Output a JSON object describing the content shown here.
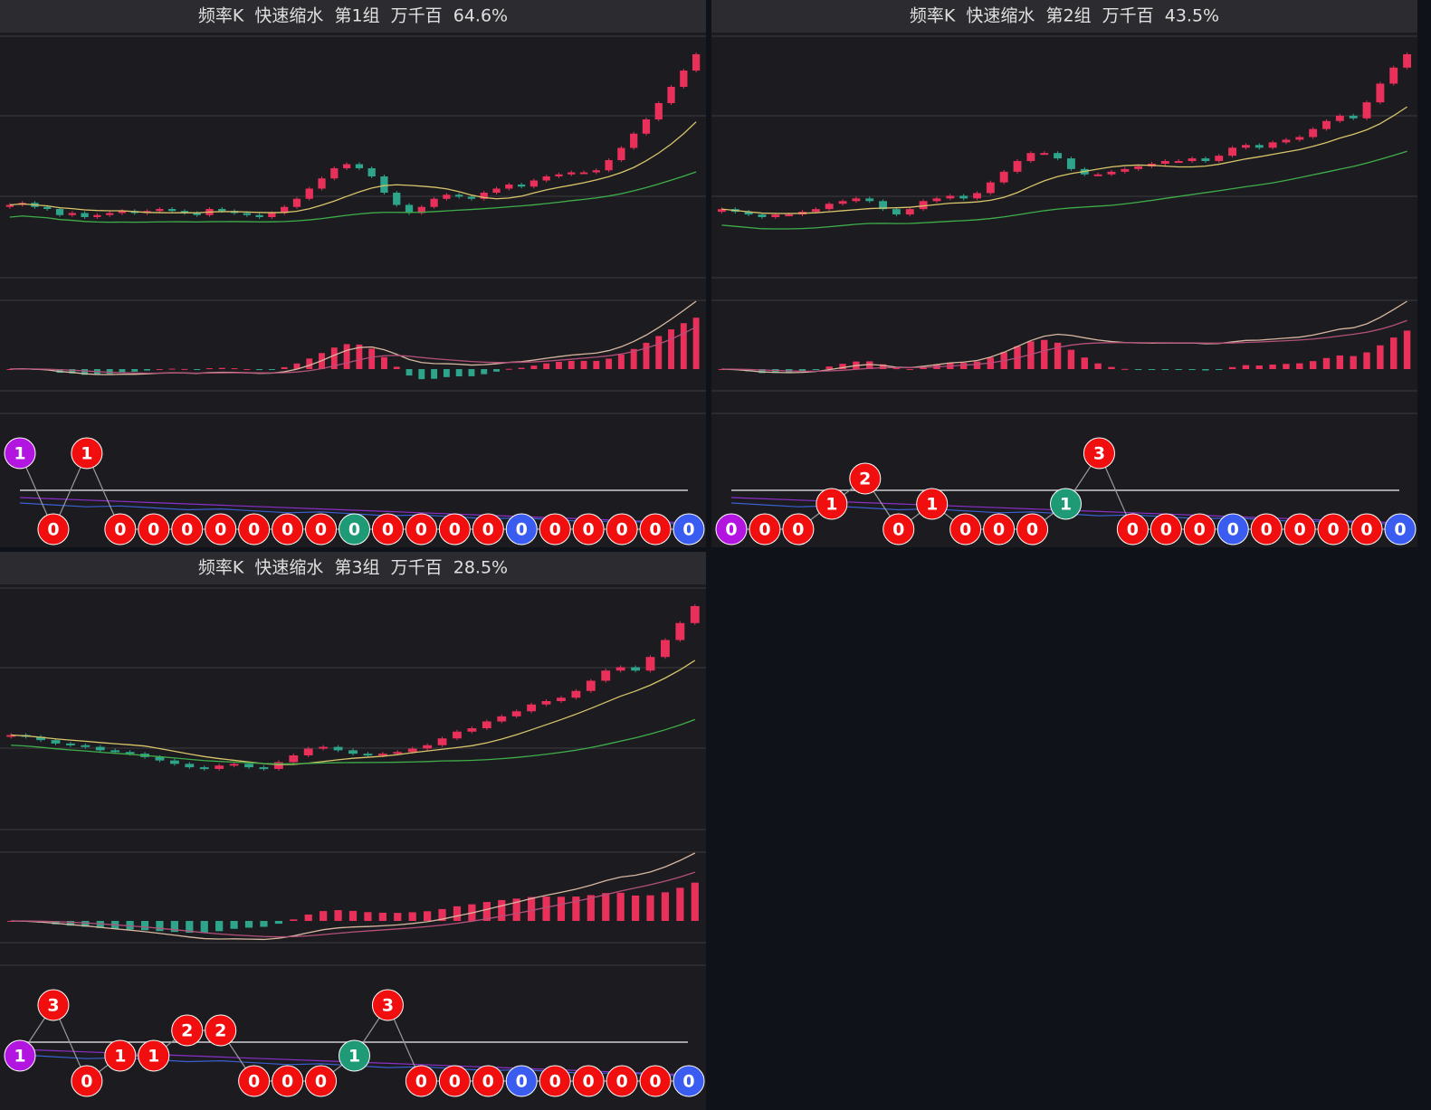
{
  "panels": [
    {
      "title": "频率K  快速缩水  第1组  万千百  64.6%",
      "close": [
        100,
        101,
        99,
        98,
        95,
        96,
        94,
        95,
        96,
        97,
        96,
        97,
        98,
        97,
        96,
        95,
        98,
        97,
        96,
        95,
        94,
        96,
        99,
        103,
        108,
        113,
        118,
        120,
        118,
        114,
        106,
        100,
        96,
        99,
        103,
        105,
        104,
        103,
        106,
        108,
        110,
        109,
        112,
        114,
        115,
        116,
        116,
        117,
        122,
        128,
        135,
        142,
        150,
        158,
        166,
        174
      ],
      "bubbles": {
        "values": [
          1,
          0,
          1,
          0,
          0,
          0,
          0,
          0,
          0,
          0,
          0,
          0,
          0,
          0,
          0,
          0,
          0,
          0,
          0,
          0,
          0
        ],
        "colors": [
          "#b315e0",
          "#f10e0e",
          "#f10e0e",
          "#f10e0e",
          "#f10e0e",
          "#f10e0e",
          "#f10e0e",
          "#f10e0e",
          "#f10e0e",
          "#f10e0e",
          "#1f9a76",
          "#f10e0e",
          "#f10e0e",
          "#f10e0e",
          "#f10e0e",
          "#3b5cf0",
          "#f10e0e",
          "#f10e0e",
          "#f10e0e",
          "#f10e0e",
          "#3b5cf0"
        ]
      }
    },
    {
      "title": "频率K  快速缩水  第2组  万千百  43.5%",
      "close": [
        100,
        99,
        98,
        97,
        98,
        98,
        99,
        100,
        102,
        103,
        104,
        103,
        100,
        98,
        100,
        103,
        104,
        105,
        104,
        106,
        110,
        114,
        118,
        121,
        121,
        119,
        115,
        113,
        113,
        114,
        115,
        116,
        117,
        118,
        118,
        119,
        118,
        120,
        123,
        124,
        123,
        125,
        126,
        127,
        130,
        133,
        135,
        134,
        140,
        147,
        153,
        158
      ],
      "bubbles": {
        "values": [
          0,
          0,
          0,
          1,
          2,
          0,
          1,
          0,
          0,
          0,
          1,
          3,
          0,
          0,
          0,
          0,
          0,
          0,
          0,
          0,
          0
        ],
        "colors": [
          "#b315e0",
          "#f10e0e",
          "#f10e0e",
          "#f10e0e",
          "#f10e0e",
          "#f10e0e",
          "#f10e0e",
          "#f10e0e",
          "#f10e0e",
          "#f10e0e",
          "#1f9a76",
          "#f10e0e",
          "#f10e0e",
          "#f10e0e",
          "#f10e0e",
          "#3b5cf0",
          "#f10e0e",
          "#f10e0e",
          "#f10e0e",
          "#f10e0e",
          "#3b5cf0"
        ]
      }
    },
    {
      "title": "频率K  快速缩水  第3组  万千百  28.5%",
      "close": [
        120,
        119,
        117,
        115,
        114,
        113,
        111,
        110,
        109,
        107,
        105,
        103,
        101,
        100,
        102,
        103,
        101,
        100,
        104,
        108,
        112,
        113,
        111,
        109,
        108,
        109,
        110,
        112,
        114,
        118,
        122,
        124,
        128,
        131,
        134,
        138,
        140,
        142,
        146,
        152,
        158,
        160,
        158,
        166,
        176,
        186,
        196
      ],
      "bubbles": {
        "values": [
          1,
          3,
          0,
          1,
          1,
          2,
          2,
          0,
          0,
          0,
          1,
          3,
          0,
          0,
          0,
          0,
          0,
          0,
          0,
          0,
          0
        ],
        "colors": [
          "#b315e0",
          "#f10e0e",
          "#f10e0e",
          "#f10e0e",
          "#f10e0e",
          "#f10e0e",
          "#f10e0e",
          "#f10e0e",
          "#f10e0e",
          "#f10e0e",
          "#1f9a76",
          "#f10e0e",
          "#f10e0e",
          "#f10e0e",
          "#f10e0e",
          "#3b5cf0",
          "#f10e0e",
          "#f10e0e",
          "#f10e0e",
          "#f10e0e",
          "#3b5cf0"
        ]
      }
    }
  ]
}
